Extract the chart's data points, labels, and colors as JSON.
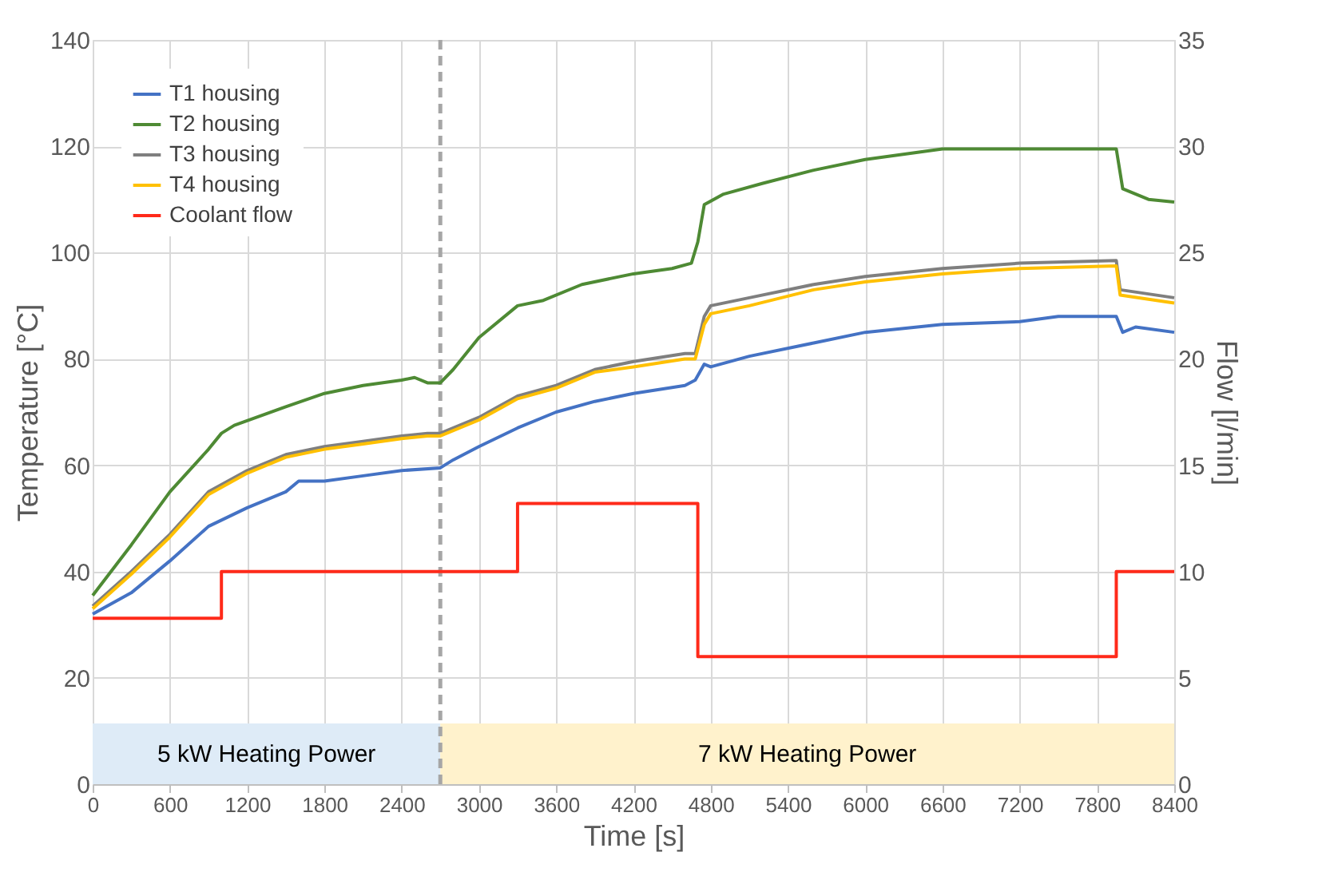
{
  "chart_data": {
    "type": "line",
    "xlabel": "Time [s]",
    "ylabel": "Temperature [°C]",
    "y2label": "Flow [l/min]",
    "xlim": [
      0,
      8400
    ],
    "xticks": [
      0,
      600,
      1200,
      1800,
      2400,
      3000,
      3600,
      4200,
      4800,
      5400,
      6000,
      6600,
      7200,
      7800,
      8400
    ],
    "ylim": [
      0,
      140
    ],
    "yticks": [
      0,
      20,
      40,
      60,
      80,
      100,
      120,
      140
    ],
    "y2lim": [
      0,
      35
    ],
    "y2ticks": [
      0,
      5,
      10,
      15,
      20,
      25,
      30,
      35
    ],
    "grid": true,
    "legend": "top left",
    "line_style": "solid",
    "marker": "none",
    "series": [
      {
        "name": "T1 housing",
        "color": "#4472c4",
        "x": [
          0,
          300,
          600,
          900,
          1200,
          1500,
          1600,
          1800,
          2100,
          2400,
          2700,
          2800,
          3000,
          3300,
          3600,
          3900,
          4200,
          4600,
          4680,
          4750,
          4800,
          5100,
          5600,
          6000,
          6600,
          7200,
          7500,
          7950,
          8000,
          8100,
          8400
        ],
        "values": [
          32,
          36,
          42,
          48.5,
          52,
          55,
          57,
          57,
          58,
          59,
          59.5,
          61,
          63.5,
          67,
          70,
          72,
          73.5,
          75,
          76,
          79,
          78.5,
          80.5,
          83,
          85,
          86.5,
          87,
          88,
          88,
          85,
          86,
          85
        ]
      },
      {
        "name": "T2 housing",
        "color": "#4e8a34",
        "x": [
          0,
          300,
          600,
          900,
          1000,
          1100,
          1500,
          1800,
          2100,
          2400,
          2500,
          2600,
          2700,
          2800,
          3000,
          3300,
          3500,
          3800,
          4200,
          4500,
          4650,
          4700,
          4750,
          4900,
          5200,
          5600,
          6000,
          6600,
          7200,
          7950,
          8000,
          8200,
          8400
        ],
        "values": [
          35.5,
          45,
          55,
          63,
          66,
          67.5,
          71,
          73.5,
          75,
          76,
          76.5,
          75.5,
          75.5,
          78,
          84,
          90,
          91,
          94,
          96,
          97,
          98,
          102,
          109,
          111,
          113,
          115.5,
          117.5,
          119.5,
          119.5,
          119.5,
          112,
          110,
          109.5
        ]
      },
      {
        "name": "T3 housing",
        "color": "#7f7f7f",
        "x": [
          0,
          300,
          600,
          900,
          1200,
          1500,
          1800,
          2100,
          2400,
          2600,
          2700,
          3000,
          3300,
          3600,
          3900,
          4200,
          4600,
          4680,
          4750,
          4800,
          5100,
          5600,
          6000,
          6600,
          7200,
          7950,
          7980,
          8400
        ],
        "values": [
          33.5,
          40,
          47,
          55,
          59,
          62,
          63.5,
          64.5,
          65.5,
          66,
          66,
          69,
          73,
          75,
          78,
          79.5,
          81,
          81,
          88,
          90,
          91.5,
          94,
          95.5,
          97,
          98,
          98.5,
          93,
          91.5
        ]
      },
      {
        "name": "T4 housing",
        "color": "#ffc000",
        "x": [
          0,
          300,
          600,
          900,
          1200,
          1500,
          1800,
          2100,
          2400,
          2600,
          2700,
          3000,
          3300,
          3600,
          3900,
          4200,
          4600,
          4680,
          4750,
          4800,
          5100,
          5600,
          6000,
          6600,
          7200,
          7950,
          7980,
          8400
        ],
        "values": [
          33,
          39.5,
          46.5,
          54.5,
          58.5,
          61.5,
          63,
          64,
          65,
          65.5,
          65.5,
          68.5,
          72.5,
          74.5,
          77.5,
          78.5,
          80,
          80,
          86.5,
          88.5,
          90,
          93,
          94.5,
          96,
          97,
          97.5,
          92,
          90.5
        ]
      },
      {
        "name": "Coolant flow",
        "color": "#ff2a1a",
        "type": "step",
        "axis": "y2",
        "x": [
          0,
          1000,
          3300,
          4700,
          7950,
          8400
        ],
        "values": [
          7.8,
          10,
          13.2,
          6,
          10,
          10
        ]
      }
    ],
    "ref_lines": [
      {
        "axis": "x",
        "value": 2700,
        "color": "#a6a6a6",
        "line_style": "dashed"
      }
    ],
    "bands": [
      {
        "axis": "x",
        "from": 0,
        "to": 2700,
        "label": "5 kW Heating Power",
        "color": "#deebf7"
      },
      {
        "axis": "x",
        "from": 2700,
        "to": 8400,
        "label": "7 kW Heating Power",
        "color": "#fff2cc"
      }
    ]
  }
}
